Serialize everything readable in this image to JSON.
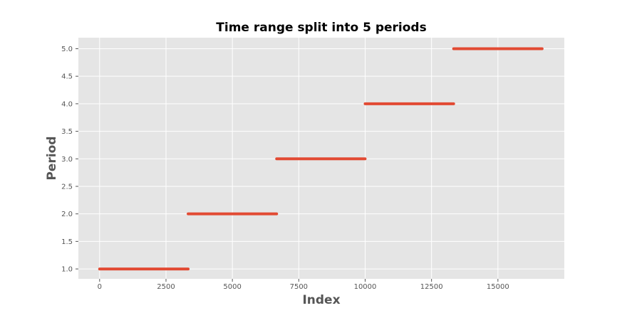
{
  "chart_data": {
    "type": "scatter",
    "title": "Time range split into 5 periods",
    "xlabel": "Index",
    "ylabel": "Period",
    "xlim": [
      -800,
      17500
    ],
    "ylim": [
      0.82,
      5.2
    ],
    "x_ticks": [
      0,
      2500,
      5000,
      7500,
      10000,
      12500,
      15000
    ],
    "x_tick_labels": [
      "0",
      "2500",
      "5000",
      "7500",
      "10000",
      "12500",
      "15000"
    ],
    "y_ticks": [
      1.0,
      1.5,
      2.0,
      2.5,
      3.0,
      3.5,
      4.0,
      4.5,
      5.0
    ],
    "y_tick_labels": [
      "1.0",
      "1.5",
      "2.0",
      "2.5",
      "3.0",
      "3.5",
      "4.0",
      "4.5",
      "5.0"
    ],
    "grid": true,
    "background": "#e5e5e5",
    "series_color": "#e24a33",
    "segments": [
      {
        "period": 1.0,
        "x_start": 0,
        "x_end": 3333
      },
      {
        "period": 2.0,
        "x_start": 3334,
        "x_end": 6666
      },
      {
        "period": 3.0,
        "x_start": 6667,
        "x_end": 9999
      },
      {
        "period": 4.0,
        "x_start": 10000,
        "x_end": 13332
      },
      {
        "period": 5.0,
        "x_start": 13333,
        "x_end": 16665
      }
    ]
  }
}
